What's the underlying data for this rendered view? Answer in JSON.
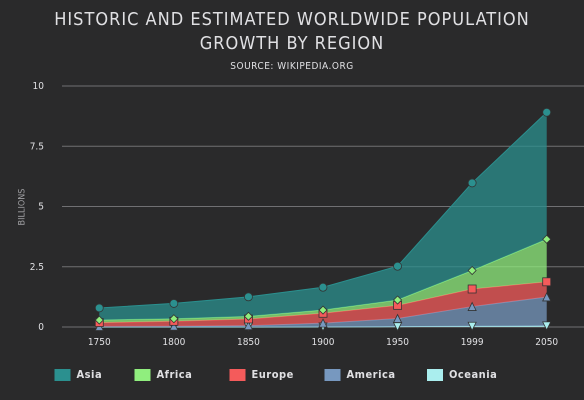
{
  "chart_data": {
    "type": "area",
    "stacking": "normal",
    "title": "Historic and Estimated Worldwide Population Growth by Region",
    "subtitle": "Source: Wikipedia.org",
    "y_axis_label": "Billions",
    "categories": [
      "1750",
      "1800",
      "1850",
      "1900",
      "1950",
      "1999",
      "2050"
    ],
    "series": [
      {
        "name": "Asia",
        "color": "#2b908f",
        "marker": "circle",
        "values": [
          0.502,
          0.635,
          0.809,
          0.947,
          1.402,
          3.634,
          5.268
        ]
      },
      {
        "name": "Africa",
        "color": "#90ee7e",
        "marker": "diamond",
        "values": [
          0.106,
          0.107,
          0.111,
          0.133,
          0.221,
          0.767,
          1.766
        ]
      },
      {
        "name": "Europe",
        "color": "#f45b5b",
        "marker": "square",
        "values": [
          0.163,
          0.203,
          0.276,
          0.408,
          0.547,
          0.729,
          0.628
        ]
      },
      {
        "name": "America",
        "color": "#7798bf",
        "marker": "triangle",
        "values": [
          0.018,
          0.031,
          0.054,
          0.156,
          0.339,
          0.818,
          1.201
        ]
      },
      {
        "name": "Oceania",
        "color": "#aaeeee",
        "marker": "triangle-down",
        "values": [
          0.002,
          0.002,
          0.002,
          0.006,
          0.013,
          0.03,
          0.046
        ]
      }
    ],
    "ylim": [
      0,
      10
    ],
    "yticks": [
      0,
      2.5,
      5,
      7.5,
      10
    ],
    "grid": true,
    "legend": "bottom"
  }
}
